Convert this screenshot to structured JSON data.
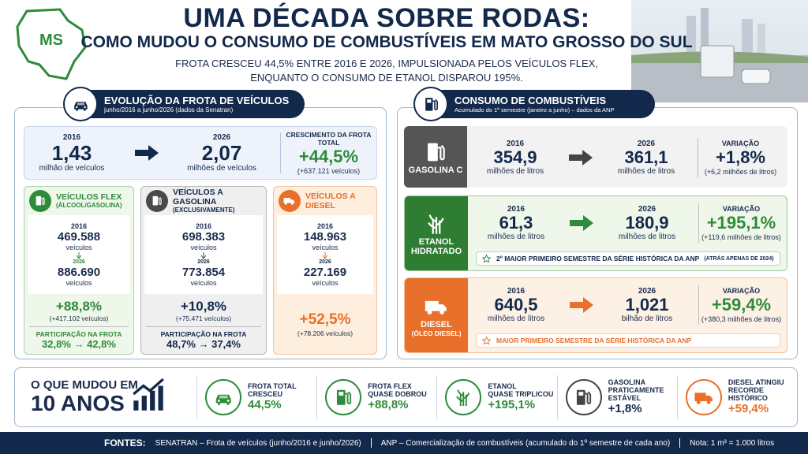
{
  "header": {
    "badge": "MS",
    "title": "UMA DÉCADA SOBRE RODAS:",
    "subtitle": "COMO MUDOU O CONSUMO DE COMBUSTÍVEIS EM MATO GROSSO DO SUL",
    "lead": [
      "FROTA CRESCEU 44,5% ENTRE 2016 E 2026, IMPULSIONADA PELOS VEÍCULOS FLEX,",
      "ENQUANTO O CONSUMO DE ETANOL DISPAROU 195%."
    ]
  },
  "fleet": {
    "title": "EVOLUÇÃO DA FROTA DE VEÍCULOS",
    "source": "junho/2016 a junho/2026 (dados da Senatran)",
    "summary": {
      "y1": "2016",
      "v1": "1,43",
      "u1": "milhão de veículos",
      "y2": "2026",
      "v2": "2,07",
      "u2": "milhões de veículos",
      "growth_label": "CRESCIMENTO DA FROTA TOTAL",
      "growth": "+44,5%",
      "growth_note": "(+637.121 veículos)"
    },
    "cards": [
      {
        "title": "VEÍCULOS FLEX",
        "sub": "(ÁLCOOL/GASOLINA)",
        "y1": "2016",
        "v1": "469.588",
        "u1": "veículos",
        "y2": "2026",
        "v2": "886.690",
        "u2": "veículos",
        "change": "+88,8%",
        "change_note": "(+417.102 veículos)",
        "share_label": "PARTICIPAÇÃO NA FROTA",
        "share": "32,8% → 42,8%"
      },
      {
        "title": "VEÍCULOS A GASOLINA",
        "sub": "(EXCLUSIVAMENTE)",
        "y1": "2016",
        "v1": "698.383",
        "u1": "veículos",
        "y2": "2026",
        "v2": "773.854",
        "u2": "veículos",
        "change": "+10,8%",
        "change_note": "(+75.471 veículos)",
        "share_label": "PARTICIPAÇÃO NA FROTA",
        "share": "48,7% → 37,4%"
      },
      {
        "title": "VEÍCULOS A DIESEL",
        "y1": "2016",
        "v1": "148.963",
        "u1": "veículos",
        "y2": "2026",
        "v2": "227.169",
        "u2": "veículos",
        "change": "+52,5%",
        "change_note": "(+78.206 veículos)"
      }
    ]
  },
  "fuel": {
    "title": "CONSUMO DE COMBUSTÍVEIS",
    "source": "Acumulado do 1º semestre (janeiro a junho) – dados da ANP",
    "rows": [
      {
        "name": [
          "GASOLINA C"
        ],
        "y1": "2016",
        "v1": "354,9",
        "u1": "milhões de litros",
        "y2": "2026",
        "v2": "361,1",
        "u2": "milhões de litros",
        "var_label": "VARIAÇÃO",
        "var": "+1,8%",
        "var_note": "(+6,2 milhões de litros)"
      },
      {
        "name": [
          "ETANOL",
          "HIDRATADO"
        ],
        "y1": "2016",
        "v1": "61,3",
        "u1": "milhões de litros",
        "y2": "2026",
        "v2": "180,9",
        "u2": "milhões de litros",
        "var_label": "VARIAÇÃO",
        "var": "+195,1%",
        "var_note": "(+119,6 milhões de litros)",
        "note": "2º MAIOR PRIMEIRO SEMESTRE DA SÉRIE HISTÓRICA DA ANP",
        "note_extra": "(ATRÁS APENAS DE 2024)"
      },
      {
        "name": [
          "DIESEL",
          "(ÓLEO DIESEL)"
        ],
        "y1": "2016",
        "v1": "640,5",
        "u1": "milhões de litros",
        "y2": "2026",
        "v2": "1,021",
        "u2": "bilhão de litros",
        "var_label": "VARIAÇÃO",
        "var": "+59,4%",
        "var_note": "(+380,3 milhões de litros)",
        "note": "MAIOR PRIMEIRO SEMESTRE DA SÉRIE HISTÓRICA DA ANP"
      }
    ]
  },
  "summary": {
    "title": "O QUE MUDOU EM",
    "big": "10 ANOS",
    "items": [
      {
        "label": [
          "FROTA TOTAL",
          "CRESCEU"
        ],
        "value": "44,5%"
      },
      {
        "label": [
          "FROTA FLEX",
          "QUASE DOBROU"
        ],
        "value": "+88,8%"
      },
      {
        "label": [
          "ETANOL",
          "QUASE TRIPLICOU"
        ],
        "value": "+195,1%"
      },
      {
        "label": [
          "GASOLINA",
          "PRATICAMENTE",
          "ESTÁVEL"
        ],
        "value": "+1,8%"
      },
      {
        "label": [
          "DIESEL ATINGIU",
          "RECORDE",
          "HISTÓRICO"
        ],
        "value": "+59,4%"
      }
    ]
  },
  "footer": {
    "label": "FONTES:",
    "parts": [
      "SENATRAN – Frota de veículos (junho/2016 e junho/2026)",
      "ANP – Comercialização de combustíveis (acumulado do 1º semestre de cada ano)",
      "Nota: 1 m³ = 1.000 litros"
    ]
  }
}
